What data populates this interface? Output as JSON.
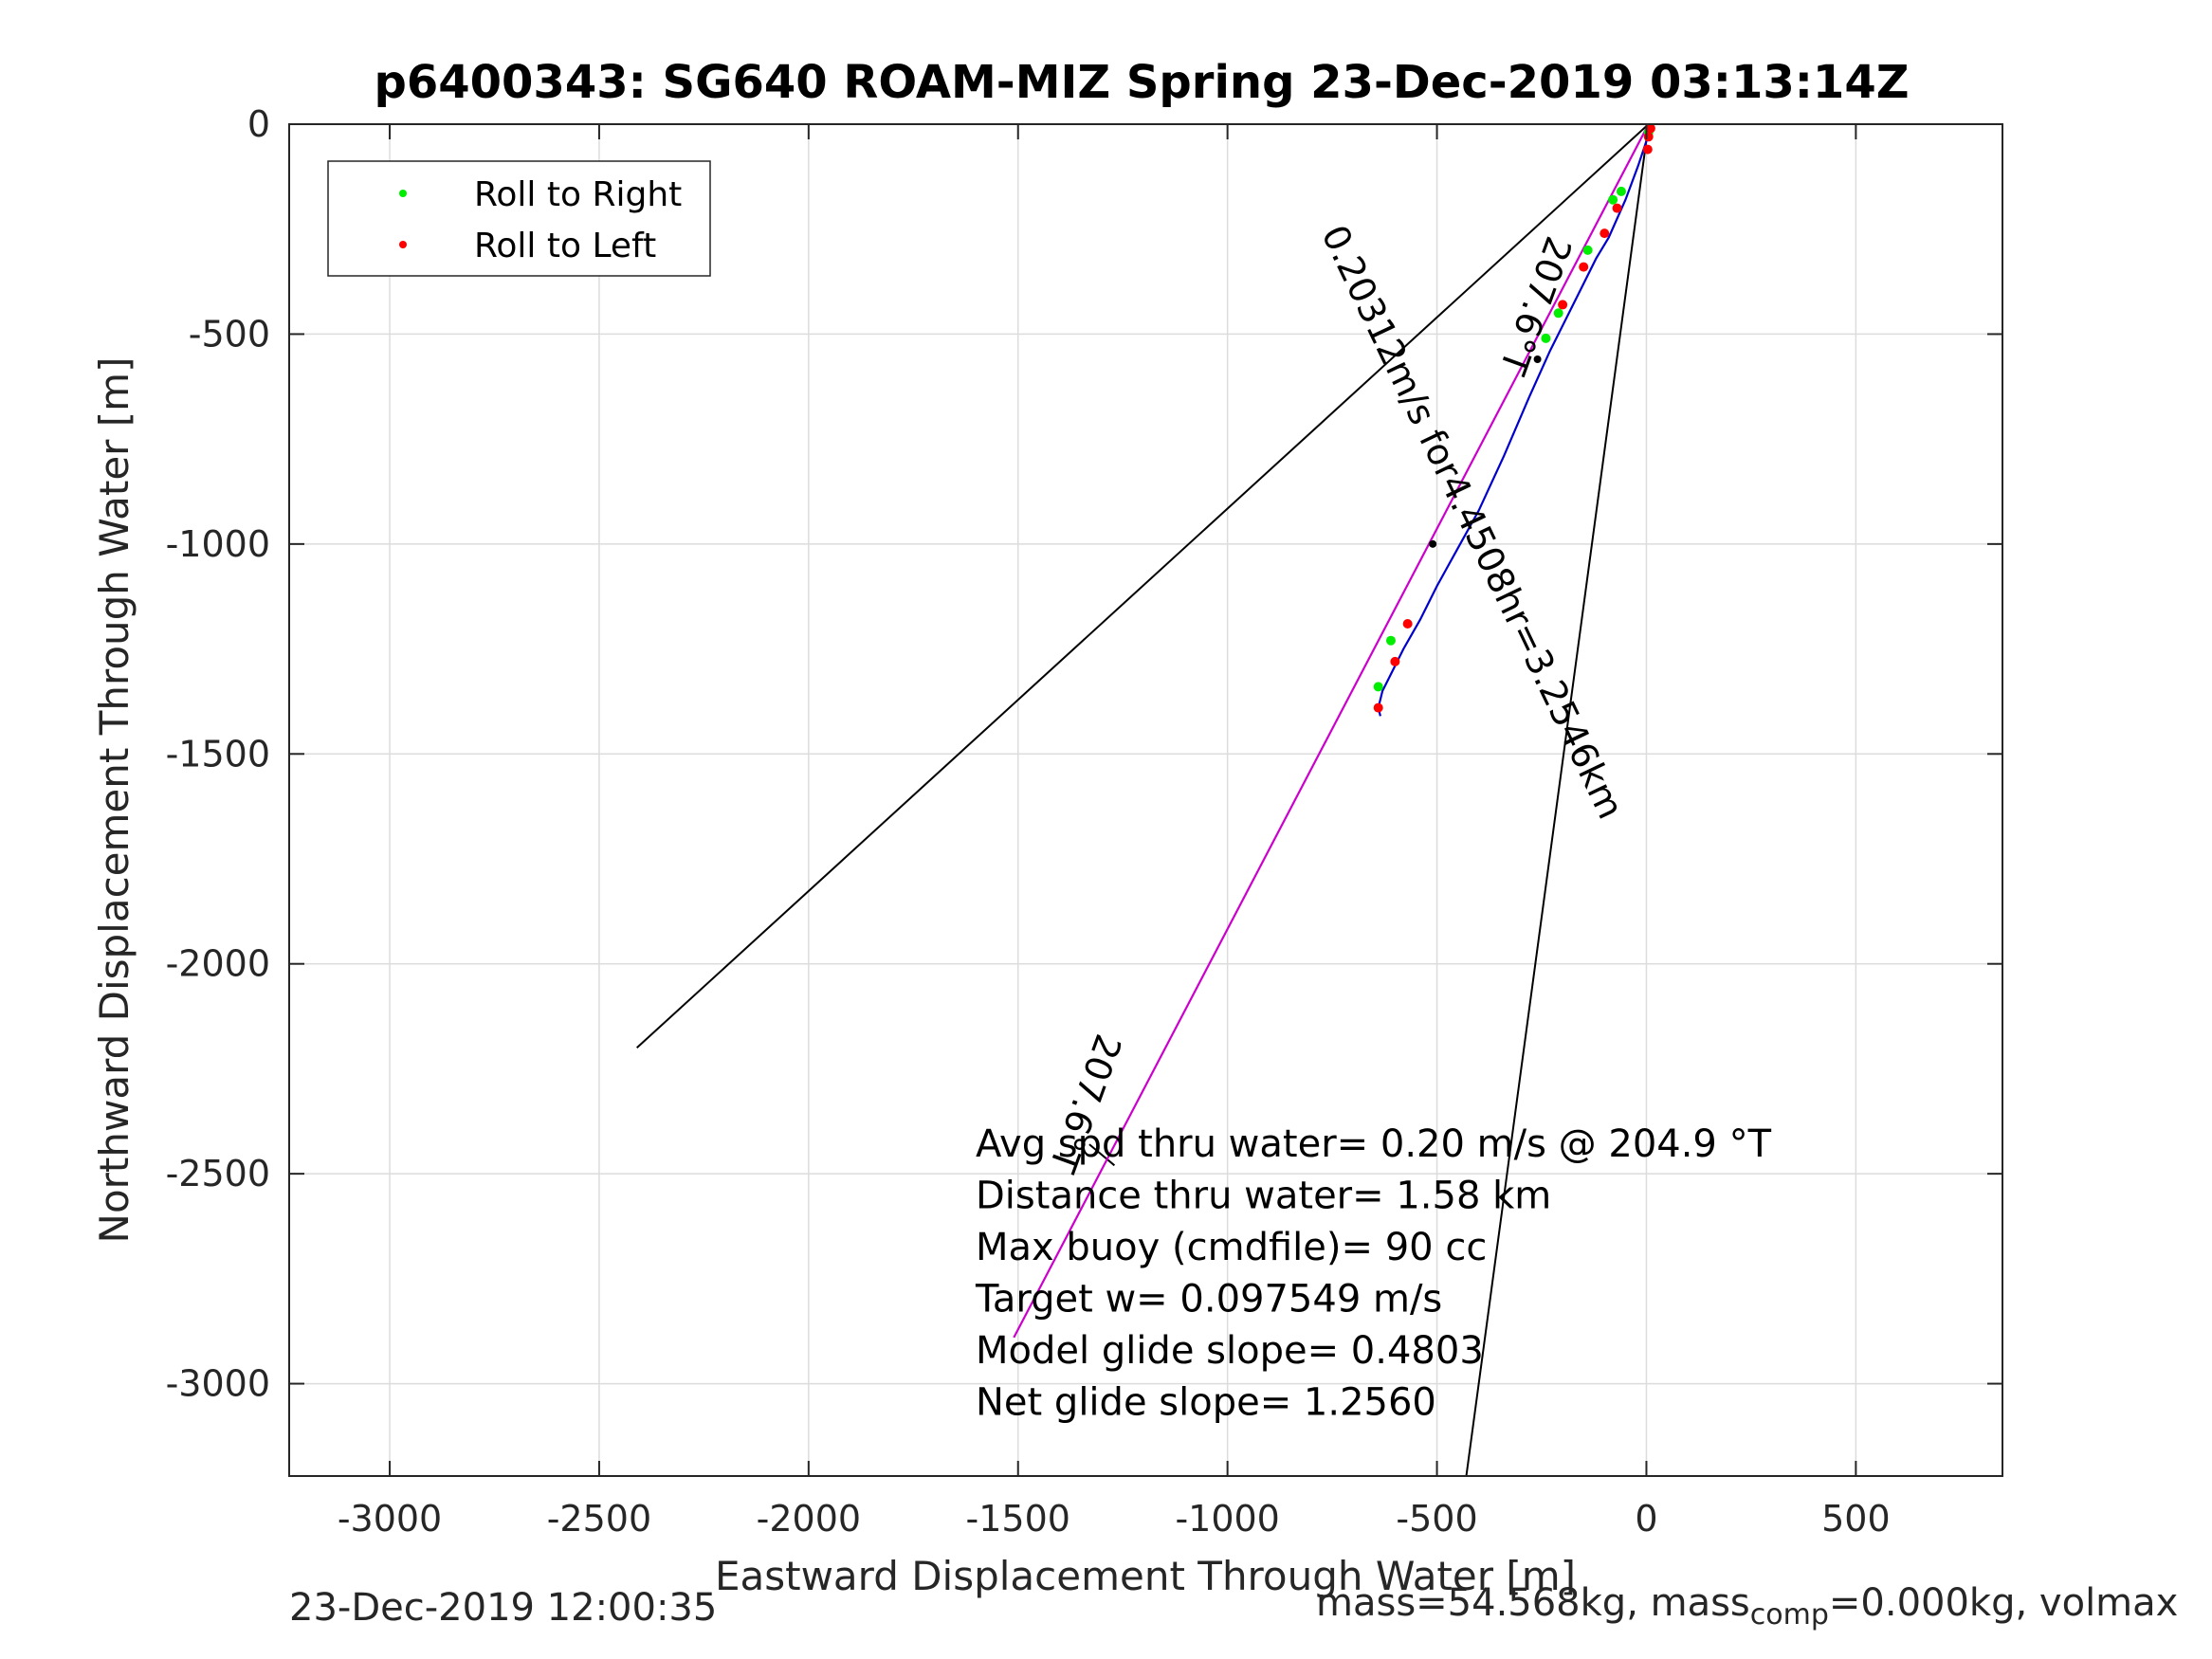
{
  "chart_data": {
    "type": "line",
    "title": "p6400343: SG640 ROAM-MIZ Spring 23-Dec-2019 03:13:14Z",
    "xlabel": "Eastward Displacement Through Water [m]",
    "ylabel": "Northward Displacement Through Water [m]",
    "xlim": [
      -3240,
      850
    ],
    "ylim": [
      -3220,
      0
    ],
    "xticks": [
      -3000,
      -2500,
      -2000,
      -1500,
      -1000,
      -500,
      0,
      500
    ],
    "yticks": [
      0,
      -500,
      -1000,
      -1500,
      -2000,
      -2500,
      -3000
    ],
    "xtick_labels": [
      "-3000",
      "-2500",
      "-2000",
      "-1500",
      "-1000",
      "-500",
      "0",
      "500"
    ],
    "ytick_labels": [
      "0",
      "-500",
      "-1000",
      "-1500",
      "-2000",
      "-2500",
      "-3000"
    ],
    "grid": true,
    "legend_position": "top-left",
    "legend": [
      {
        "label": "Roll to Right",
        "color": "#00ee00"
      },
      {
        "label": "Roll to Left",
        "color": "#ff0000"
      }
    ],
    "colors": {
      "track": "#0000cc",
      "rhumb": "#cc00cc",
      "reference": "#000000",
      "roll_right": "#00ee00",
      "roll_left": "#ff0000"
    },
    "series": [
      {
        "kind": "track",
        "x": [
          5,
          0,
          -20,
          -50,
          -90,
          -120,
          -150,
          -180,
          -230,
          -280,
          -340,
          -400,
          -450,
          -500,
          -540,
          -580,
          -610,
          -630,
          -640,
          -635
        ],
        "y": [
          0,
          -40,
          -100,
          -180,
          -270,
          -320,
          -380,
          -440,
          -540,
          -650,
          -790,
          -920,
          -1010,
          -1100,
          -1180,
          -1250,
          -1310,
          -1350,
          -1390,
          -1410
        ]
      },
      {
        "kind": "rhumb",
        "x": [
          5,
          -1510
        ],
        "y": [
          0,
          -2890
        ]
      },
      {
        "kind": "reference",
        "x": [
          5,
          -2410
        ],
        "y": [
          0,
          -2200
        ]
      },
      {
        "kind": "reference",
        "x": [
          5,
          -430
        ],
        "y": [
          0,
          -3220
        ]
      },
      {
        "kind": "reference",
        "x": [
          -1270,
          -1330
        ],
        "y": [
          -2480,
          -2430
        ]
      },
      {
        "kind": "roll_right",
        "x": [
          5,
          -60,
          -80,
          -140,
          -210,
          -240,
          -610,
          -640
        ],
        "y": [
          -20,
          -160,
          -180,
          -300,
          -450,
          -510,
          -1230,
          -1340
        ]
      },
      {
        "kind": "roll_left",
        "x": [
          10,
          5,
          3,
          -70,
          -100,
          -150,
          -200,
          -570,
          -600,
          -640
        ],
        "y": [
          -10,
          -30,
          -60,
          -200,
          -260,
          -340,
          -430,
          -1190,
          -1280,
          -1390
        ]
      },
      {
        "kind": "markers",
        "x": [
          -260,
          -510
        ],
        "y": [
          -560,
          -1000
        ]
      }
    ],
    "annotations": [
      {
        "text": "207.6°T",
        "x": -270,
        "y": -430,
        "angle": 110
      },
      {
        "text": "0.20312m/s for4.4508hr=3.2546km",
        "x": -420,
        "y": -950,
        "angle": 64.5
      },
      {
        "text": "207.6°T",
        "x": -1345,
        "y": -2330,
        "angle": 110
      }
    ],
    "stats": [
      "Avg spd thru water=  0.20 m/s @ 204.9 °T",
      "Distance thru water=  1.58 km",
      "Max buoy (cmdfile)= 90 cc",
      "Target w= 0.097549 m/s",
      "Model glide slope= 0.4803",
      "Net glide slope= 1.2560"
    ]
  },
  "footer": {
    "timestamp": "23-Dec-2019 12:00:35",
    "mass_prefix": "mass=54.568kg, mass",
    "mass_sub": "comp",
    "mass_suffix": "=0.000kg, volmax"
  }
}
